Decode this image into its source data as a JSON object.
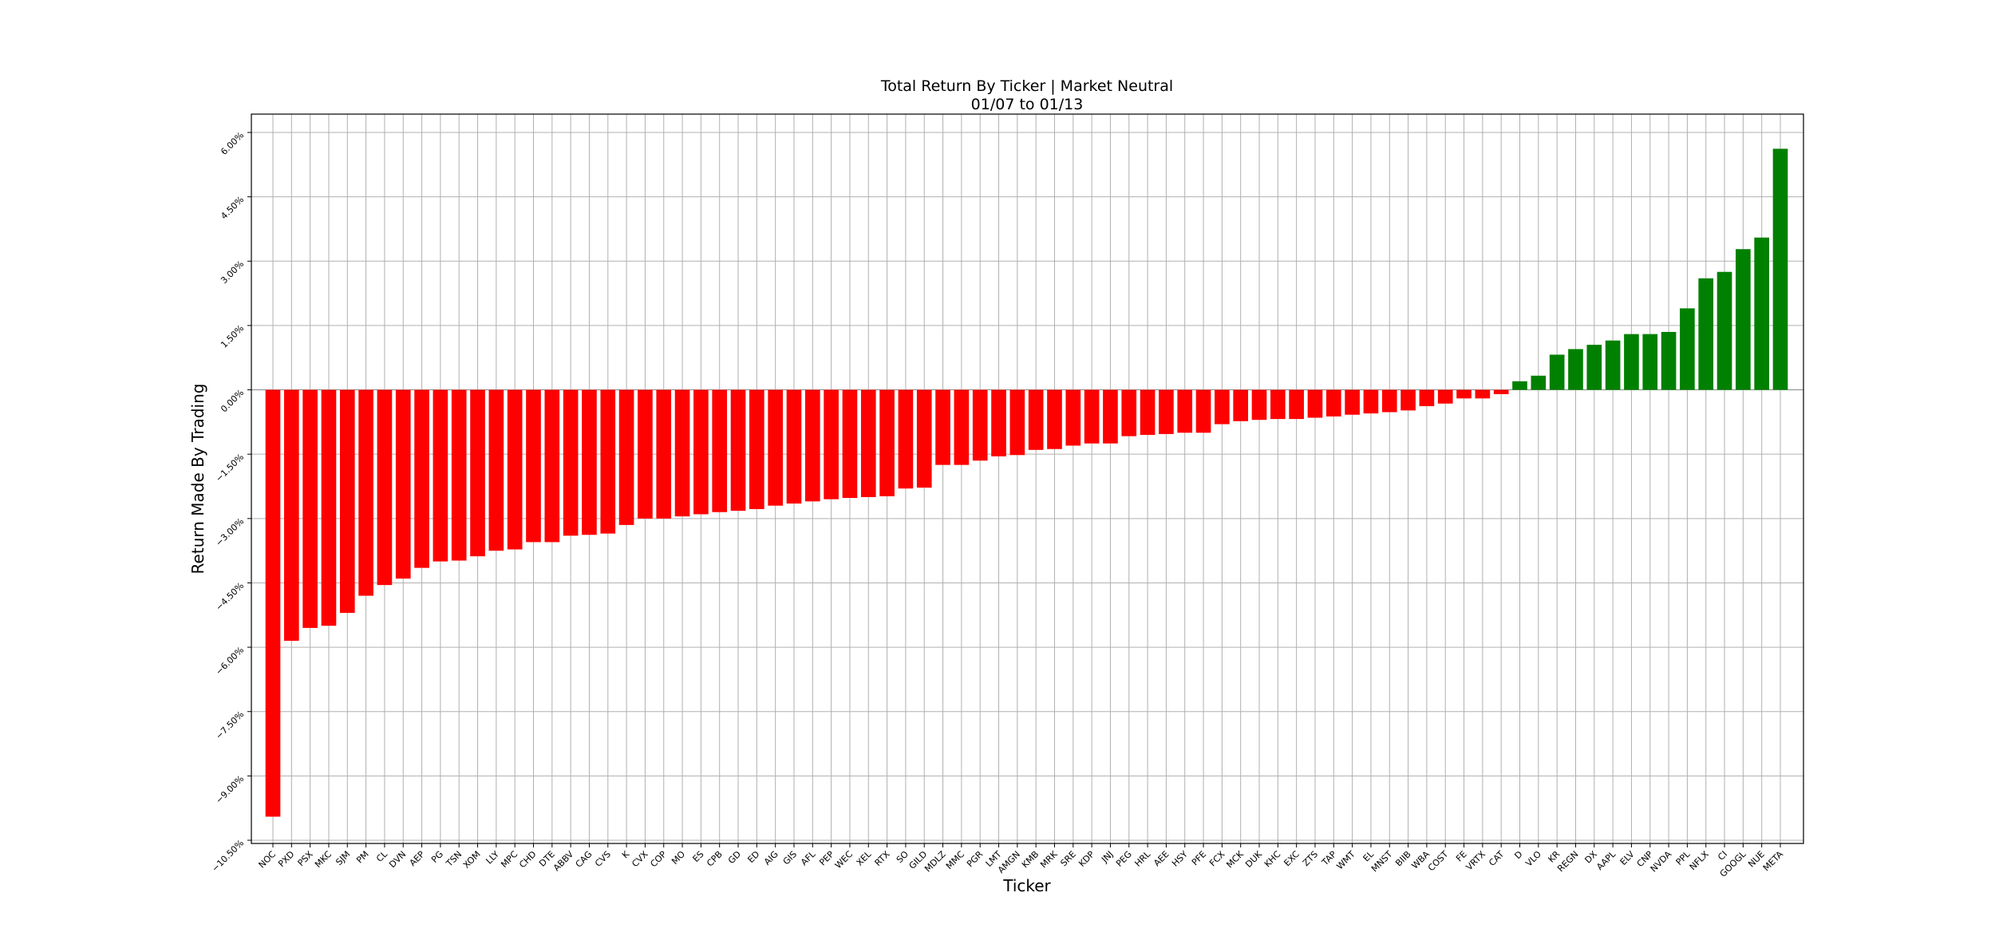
{
  "chart_data": {
    "type": "bar",
    "title": "Total Return By Ticker | Market Neutral",
    "subtitle": "01/07 to 01/13",
    "xlabel": "Ticker",
    "ylabel": "Return Made By Trading",
    "ylim": [
      -10.5,
      6.0
    ],
    "yticks": [
      -10.5,
      -9.0,
      -7.5,
      -6.0,
      -4.5,
      -3.0,
      -1.5,
      0.0,
      1.5,
      3.0,
      4.5,
      6.0
    ],
    "ytick_labels": [
      "−10.50%",
      "−9.00%",
      "−7.50%",
      "−6.00%",
      "−4.50%",
      "−3.00%",
      "−1.50%",
      "0.00%",
      "1.50%",
      "3.00%",
      "4.50%",
      "6.00%"
    ],
    "grid": true,
    "colors": {
      "negative": "#ff0000",
      "positive": "#008000"
    },
    "categories": [
      "NOC",
      "PXD",
      "PSX",
      "MKC",
      "SJM",
      "PM",
      "CL",
      "DVN",
      "AEP",
      "PG",
      "TSN",
      "XOM",
      "LLY",
      "MPC",
      "CHD",
      "DTE",
      "ABBV",
      "CAG",
      "CVS",
      "K",
      "CVX",
      "COP",
      "MO",
      "ES",
      "CPB",
      "GD",
      "ED",
      "AIG",
      "GIS",
      "AFL",
      "PEP",
      "WEC",
      "XEL",
      "RTX",
      "SO",
      "GILD",
      "MDLZ",
      "MMC",
      "PGR",
      "LMT",
      "AMGN",
      "KMB",
      "MRK",
      "SRE",
      "KDP",
      "JNJ",
      "PEG",
      "HRL",
      "AEE",
      "HSY",
      "PFE",
      "FCX",
      "MCK",
      "DUK",
      "KHC",
      "EXC",
      "ZTS",
      "TAP",
      "WMT",
      "EL",
      "MNST",
      "BIIB",
      "WBA",
      "COST",
      "FE",
      "VRTX",
      "CAT",
      "D",
      "VLO",
      "KR",
      "REGN",
      "DX",
      "AAPL",
      "ELV",
      "CNP",
      "NVDA",
      "PPL",
      "NFLX",
      "CI",
      "GOOGL",
      "NUE",
      "META"
    ],
    "values": [
      -9.95,
      -5.85,
      -5.55,
      -5.5,
      -5.2,
      -4.8,
      -4.55,
      -4.4,
      -4.15,
      -4.0,
      -3.98,
      -3.88,
      -3.75,
      -3.72,
      -3.55,
      -3.55,
      -3.4,
      -3.38,
      -3.35,
      -3.15,
      -3.0,
      -3.0,
      -2.95,
      -2.9,
      -2.85,
      -2.82,
      -2.78,
      -2.7,
      -2.65,
      -2.6,
      -2.55,
      -2.52,
      -2.5,
      -2.48,
      -2.3,
      -2.28,
      -1.75,
      -1.75,
      -1.65,
      -1.55,
      -1.52,
      -1.4,
      -1.38,
      -1.3,
      -1.25,
      -1.25,
      -1.08,
      -1.05,
      -1.03,
      -1.0,
      -1.0,
      -0.8,
      -0.73,
      -0.7,
      -0.68,
      -0.68,
      -0.65,
      -0.62,
      -0.58,
      -0.55,
      -0.52,
      -0.48,
      -0.38,
      -0.32,
      -0.2,
      -0.2,
      -0.1,
      0.2,
      0.33,
      0.82,
      0.95,
      1.05,
      1.15,
      1.3,
      1.3,
      1.35,
      1.9,
      2.6,
      2.75,
      3.28,
      3.55,
      5.62
    ]
  }
}
